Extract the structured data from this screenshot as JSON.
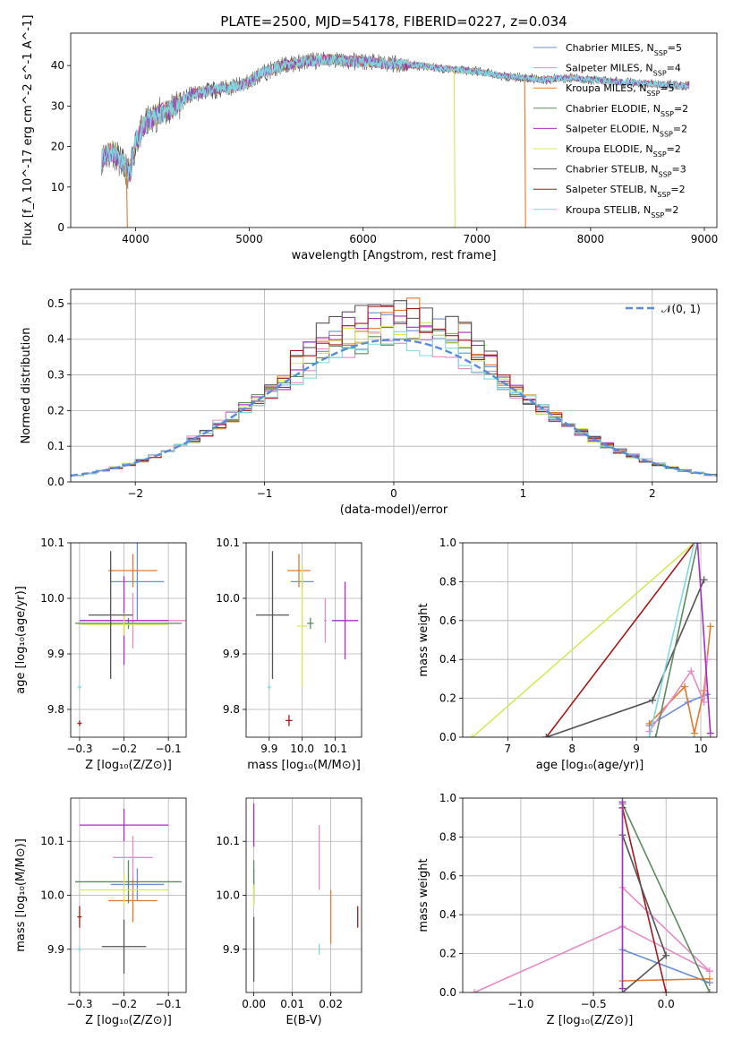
{
  "figure": {
    "title": "PLATE=2500, MJD=54178, FIBERID=0227, z=0.034"
  },
  "colors": {
    "Chabrier MILES": "#6a8ed6",
    "Salpeter MILES": "#e68ac4",
    "Kroupa MILES": "#e07a2e",
    "Chabrier ELODIE": "#5f8a5f",
    "Salpeter ELODIE": "#a52fc2",
    "Kroupa ELODIE": "#d6e85a",
    "Chabrier STELIB": "#555555",
    "Salpeter STELIB": "#a31a1a",
    "Kroupa STELIB": "#7fd9dc",
    "normal": "#5b8bd6"
  },
  "chart_data": [
    {
      "id": "spectrum",
      "type": "line",
      "xlabel": "wavelength [Angstrom, rest frame]",
      "ylabel": "Flux [f_λ 10^-17 erg cm^-2 s^-1 A^-1]",
      "xlim": [
        3430,
        9110
      ],
      "ylim": [
        0,
        48
      ],
      "xticks": [
        4000,
        5000,
        6000,
        7000,
        8000,
        9000
      ],
      "yticks": [
        0,
        10,
        20,
        30,
        40
      ],
      "legend_position": "top-right",
      "legend": [
        {
          "model": "Chabrier MILES",
          "label": "Chabrier MILES, N",
          "sub": "SSP",
          "tail": "=5"
        },
        {
          "model": "Salpeter MILES",
          "label": "Salpeter MILES, N",
          "sub": "SSP",
          "tail": "=4"
        },
        {
          "model": "Kroupa MILES",
          "label": "Kroupa MILES, N",
          "sub": "SSP",
          "tail": "=5"
        },
        {
          "model": "Chabrier ELODIE",
          "label": "Chabrier ELODIE, N",
          "sub": "SSP",
          "tail": "=2"
        },
        {
          "model": "Salpeter ELODIE",
          "label": "Salpeter ELODIE, N",
          "sub": "SSP",
          "tail": "=2"
        },
        {
          "model": "Kroupa ELODIE",
          "label": "Kroupa ELODIE, N",
          "sub": "SSP",
          "tail": "=2"
        },
        {
          "model": "Chabrier STELIB",
          "label": "Chabrier STELIB, N",
          "sub": "SSP",
          "tail": "=3"
        },
        {
          "model": "Salpeter STELIB",
          "label": "Salpeter STELIB, N",
          "sub": "SSP",
          "tail": "=2"
        },
        {
          "model": "Kroupa STELIB",
          "label": "Kroupa STELIB, N",
          "sub": "SSP",
          "tail": "=2"
        }
      ],
      "continuum": [
        [
          3700,
          17
        ],
        [
          3800,
          19
        ],
        [
          3900,
          15
        ],
        [
          3950,
          13
        ],
        [
          4000,
          21
        ],
        [
          4100,
          26
        ],
        [
          4200,
          28
        ],
        [
          4300,
          29
        ],
        [
          4400,
          31
        ],
        [
          4500,
          33
        ],
        [
          4700,
          34
        ],
        [
          4900,
          35
        ],
        [
          5000,
          36
        ],
        [
          5100,
          38
        ],
        [
          5200,
          39
        ],
        [
          5300,
          40
        ],
        [
          5500,
          41
        ],
        [
          5700,
          41.5
        ],
        [
          5900,
          41
        ],
        [
          6000,
          41
        ],
        [
          6200,
          40.5
        ],
        [
          6500,
          40
        ],
        [
          6800,
          39
        ],
        [
          7000,
          38.5
        ],
        [
          7200,
          37.5
        ],
        [
          7400,
          37
        ],
        [
          7600,
          36.5
        ],
        [
          7800,
          37
        ],
        [
          8000,
          36.5
        ],
        [
          8200,
          36
        ],
        [
          8500,
          35.5
        ],
        [
          8800,
          35
        ],
        [
          8870,
          35
        ]
      ],
      "features": [
        {
          "model": "Kroupa MILES",
          "wavelength": 3920,
          "min": 0
        },
        {
          "model": "Kroupa ELODIE",
          "wavelength": 6800,
          "min": 0
        },
        {
          "model": "Kroupa MILES",
          "wavelength": 7420,
          "min": 0
        }
      ]
    },
    {
      "id": "residuals",
      "type": "histogram",
      "xlabel": "(data-model)/error",
      "ylabel": "Normed distribution",
      "xlim": [
        -2.5,
        2.5
      ],
      "ylim": [
        0,
        0.54
      ],
      "xticks": [
        -2,
        -1,
        0,
        1,
        2
      ],
      "yticks": [
        0.0,
        0.1,
        0.2,
        0.3,
        0.4,
        0.5
      ],
      "legend_position": "top-right",
      "normal_label": "𝒩(0, 1)",
      "bin_width": 0.1,
      "bin_start": -2.5,
      "peak_heights": {
        "Chabrier MILES": 0.46,
        "Salpeter MILES": 0.43,
        "Kroupa MILES": 0.49,
        "Chabrier ELODIE": 0.44,
        "Salpeter ELODIE": 0.47,
        "Kroupa ELODIE": 0.45,
        "Chabrier STELIB": 0.51,
        "Salpeter STELIB": 0.48,
        "Kroupa STELIB": 0.42
      }
    },
    {
      "id": "age_vs_Z",
      "type": "errorbar",
      "xlabel": "Z [log₁₀(Z/Z⊙)]",
      "ylabel": "age  [log₁₀(age/yr)]",
      "xlim": [
        -0.32,
        -0.06
      ],
      "ylim": [
        9.75,
        10.1
      ],
      "xticks": [
        -0.3,
        -0.2,
        -0.1
      ],
      "yticks": [
        9.8,
        9.9,
        10.0,
        10.1
      ],
      "points": [
        {
          "model": "Chabrier MILES",
          "x": -0.17,
          "xerr": 0.06,
          "y": 10.03,
          "yerr": 0.07
        },
        {
          "model": "Salpeter MILES",
          "x": -0.18,
          "xerr": 0.12,
          "y": 9.96,
          "yerr": 0.05
        },
        {
          "model": "Kroupa MILES",
          "x": -0.18,
          "xerr": 0.055,
          "y": 10.05,
          "yerr": 0.03
        },
        {
          "model": "Chabrier ELODIE",
          "x": -0.19,
          "xerr": 0.12,
          "y": 9.955,
          "yerr": 0.01
        },
        {
          "model": "Salpeter ELODIE",
          "x": -0.2,
          "xerr": 0.1,
          "y": 9.96,
          "yerr": 0.08
        },
        {
          "model": "Kroupa ELODIE",
          "x": -0.2,
          "xerr": 0.1,
          "y": 9.953,
          "yerr": 0.02
        },
        {
          "model": "Chabrier STELIB",
          "x": -0.23,
          "xerr": 0.05,
          "y": 9.97,
          "yerr": 0.115
        },
        {
          "model": "Salpeter STELIB",
          "x": -0.3,
          "xerr": 0.005,
          "y": 9.775,
          "yerr": 0.005
        },
        {
          "model": "Kroupa STELIB",
          "x": -0.3,
          "xerr": 0.004,
          "y": 9.84,
          "yerr": 0.005
        }
      ]
    },
    {
      "id": "age_vs_mass",
      "type": "errorbar",
      "xlabel": "mass [log₁₀(M/M⊙)]",
      "ylabel": "",
      "xlim": [
        9.83,
        10.18
      ],
      "ylim": [
        9.75,
        10.1
      ],
      "xticks": [
        9.9,
        10.0,
        10.1
      ],
      "yticks": [
        9.8,
        9.9,
        10.0,
        10.1
      ],
      "points": [
        {
          "model": "Chabrier MILES",
          "x": 10.0,
          "xerr": 0.035,
          "y": 10.03,
          "yerr": 0.01
        },
        {
          "model": "Salpeter MILES",
          "x": 10.07,
          "xerr": 0.004,
          "y": 9.96,
          "yerr": 0.04
        },
        {
          "model": "Kroupa MILES",
          "x": 9.99,
          "xerr": 0.035,
          "y": 10.05,
          "yerr": 0.03
        },
        {
          "model": "Chabrier ELODIE",
          "x": 10.025,
          "xerr": 0.01,
          "y": 9.955,
          "yerr": 0.01
        },
        {
          "model": "Salpeter ELODIE",
          "x": 10.13,
          "xerr": 0.04,
          "y": 9.96,
          "yerr": 0.07
        },
        {
          "model": "Kroupa ELODIE",
          "x": 10.0,
          "xerr": 0.015,
          "y": 9.95,
          "yerr": 0.11
        },
        {
          "model": "Chabrier STELIB",
          "x": 9.91,
          "xerr": 0.05,
          "y": 9.97,
          "yerr": 0.115
        },
        {
          "model": "Salpeter STELIB",
          "x": 9.96,
          "xerr": 0.01,
          "y": 9.78,
          "yerr": 0.01
        },
        {
          "model": "Kroupa STELIB",
          "x": 9.9,
          "xerr": 0.005,
          "y": 9.84,
          "yerr": 0.005
        }
      ]
    },
    {
      "id": "weight_vs_age",
      "type": "line",
      "xlabel": "age  [log₁₀(age/yr)]",
      "ylabel": "mass weight",
      "xlim": [
        6.3,
        10.25
      ],
      "ylim": [
        0,
        1.0
      ],
      "xticks": [
        7,
        8,
        9,
        10
      ],
      "yticks": [
        0.0,
        0.2,
        0.4,
        0.6,
        0.8,
        1.0
      ],
      "grid": true,
      "series": [
        {
          "model": "Kroupa ELODIE",
          "x": [
            6.45,
            9.9
          ],
          "y": [
            0.0,
            1.0
          ]
        },
        {
          "model": "Salpeter STELIB",
          "x": [
            7.6,
            9.9
          ],
          "y": [
            0.0,
            1.0
          ]
        },
        {
          "model": "Chabrier STELIB",
          "x": [
            7.6,
            9.25,
            10.05
          ],
          "y": [
            0.0,
            0.19,
            0.81
          ]
        },
        {
          "model": "Chabrier MILES",
          "x": [
            9.2,
            9.8,
            10.1
          ],
          "y": [
            0.06,
            0.18,
            0.22
          ]
        },
        {
          "model": "Kroupa MILES",
          "x": [
            9.2,
            9.75,
            9.9,
            10.05,
            10.15
          ],
          "y": [
            0.07,
            0.26,
            0.02,
            0.24,
            0.57
          ]
        },
        {
          "model": "Salpeter MILES",
          "x": [
            9.2,
            9.85,
            10.05,
            10.1
          ],
          "y": [
            0.03,
            0.34,
            0.18,
            0.4
          ]
        },
        {
          "model": "Kroupa STELIB",
          "x": [
            9.2,
            9.9
          ],
          "y": [
            0.0,
            1.0
          ]
        },
        {
          "model": "Chabrier ELODIE",
          "x": [
            9.3,
            9.95
          ],
          "y": [
            0.0,
            1.0
          ]
        },
        {
          "model": "Salpeter ELODIE",
          "x": [
            9.95,
            10.15
          ],
          "y": [
            1.0,
            0.02
          ]
        }
      ]
    },
    {
      "id": "mass_vs_Z",
      "type": "errorbar",
      "xlabel": "Z [log₁₀(Z/Z⊙)]",
      "ylabel": "mass [log₁₀(M/M⊙)]",
      "xlim": [
        -0.32,
        -0.06
      ],
      "ylim": [
        9.82,
        10.18
      ],
      "xticks": [
        -0.3,
        -0.2,
        -0.1
      ],
      "yticks": [
        9.9,
        10.0,
        10.1
      ],
      "points": [
        {
          "model": "Chabrier MILES",
          "x": -0.17,
          "xerr": 0.06,
          "y": 10.02,
          "yerr": 0.03
        },
        {
          "model": "Salpeter MILES",
          "x": -0.18,
          "xerr": 0.045,
          "y": 10.07,
          "yerr": 0.04
        },
        {
          "model": "Kroupa MILES",
          "x": -0.18,
          "xerr": 0.055,
          "y": 9.99,
          "yerr": 0.04
        },
        {
          "model": "Chabrier ELODIE",
          "x": -0.19,
          "xerr": 0.12,
          "y": 10.025,
          "yerr": 0.04
        },
        {
          "model": "Salpeter ELODIE",
          "x": -0.2,
          "xerr": 0.1,
          "y": 10.13,
          "yerr": 0.03
        },
        {
          "model": "Kroupa ELODIE",
          "x": -0.2,
          "xerr": 0.1,
          "y": 10.01,
          "yerr": 0.03
        },
        {
          "model": "Chabrier STELIB",
          "x": -0.2,
          "xerr": 0.05,
          "y": 9.905,
          "yerr": 0.05
        },
        {
          "model": "Salpeter STELIB",
          "x": -0.3,
          "xerr": 0.005,
          "y": 9.96,
          "yerr": 0.02
        },
        {
          "model": "Kroupa STELIB",
          "x": -0.3,
          "xerr": 0.004,
          "y": 9.9,
          "yerr": 0.005
        }
      ]
    },
    {
      "id": "mass_vs_ebv",
      "type": "errorbar",
      "xlabel": "E(B-V)",
      "ylabel": "",
      "xlim": [
        -0.002,
        0.028
      ],
      "ylim": [
        9.82,
        10.18
      ],
      "xticks": [
        0.0,
        0.01,
        0.02
      ],
      "yticks": [
        9.9,
        10.0,
        10.1
      ],
      "points": [
        {
          "model": "Chabrier MILES",
          "x": 0.0,
          "xerr": 0.0,
          "y": 10.02,
          "yerr": 0.03
        },
        {
          "model": "Salpeter MILES",
          "x": 0.017,
          "xerr": 0.0,
          "y": 10.07,
          "yerr": 0.06
        },
        {
          "model": "Kroupa MILES",
          "x": 0.02,
          "xerr": 0.0,
          "y": 9.96,
          "yerr": 0.05
        },
        {
          "model": "Chabrier ELODIE",
          "x": 0.0,
          "xerr": 0.0,
          "y": 10.025,
          "yerr": 0.04
        },
        {
          "model": "Salpeter ELODIE",
          "x": 0.0,
          "xerr": 0.0,
          "y": 10.13,
          "yerr": 0.04
        },
        {
          "model": "Kroupa ELODIE",
          "x": 0.0,
          "xerr": 0.0,
          "y": 10.0,
          "yerr": 0.02
        },
        {
          "model": "Chabrier STELIB",
          "x": 0.0,
          "xerr": 0.0,
          "y": 9.9,
          "yerr": 0.06
        },
        {
          "model": "Salpeter STELIB",
          "x": 0.027,
          "xerr": 0.0,
          "y": 9.96,
          "yerr": 0.02
        },
        {
          "model": "Kroupa STELIB",
          "x": 0.017,
          "xerr": 0.0,
          "y": 9.9,
          "yerr": 0.01
        }
      ]
    },
    {
      "id": "weight_vs_Z",
      "type": "line",
      "xlabel": "Z [log₁₀(Z/Z⊙)]",
      "ylabel": "mass weight",
      "xlim": [
        -1.4,
        0.35
      ],
      "ylim": [
        0,
        1.0
      ],
      "xticks": [
        -1.0,
        -0.5,
        0.0
      ],
      "yticks": [
        0.0,
        0.2,
        0.4,
        0.6,
        0.8,
        1.0
      ],
      "grid": true,
      "series": [
        {
          "model": "Salpeter MILES",
          "x": [
            -1.32,
            -0.3,
            0.3
          ],
          "y": [
            0.0,
            0.34,
            0.11
          ]
        },
        {
          "model": "Salpeter MILES",
          "x": [
            -0.3,
            0.3
          ],
          "y": [
            0.54,
            0.11
          ]
        },
        {
          "model": "Chabrier MILES",
          "x": [
            -0.3,
            0.3
          ],
          "y": [
            0.22,
            0.05
          ]
        },
        {
          "model": "Kroupa MILES",
          "x": [
            -0.3,
            0.3
          ],
          "y": [
            0.06,
            0.07
          ]
        },
        {
          "model": "Chabrier ELODIE",
          "x": [
            -0.3,
            0.3
          ],
          "y": [
            0.97,
            0.0
          ]
        },
        {
          "model": "Salpeter STELIB",
          "x": [
            -0.3,
            0.0
          ],
          "y": [
            0.95,
            0.0
          ]
        },
        {
          "model": "Chabrier STELIB",
          "x": [
            -0.3,
            0.0,
            -0.3
          ],
          "y": [
            0.81,
            0.19,
            0.0
          ]
        },
        {
          "model": "Kroupa STELIB",
          "x": [
            -0.3,
            -0.3
          ],
          "y": [
            0.0,
            1.0
          ]
        },
        {
          "model": "Salpeter ELODIE",
          "x": [
            -0.3,
            -0.3
          ],
          "y": [
            0.02,
            0.98
          ]
        }
      ]
    }
  ]
}
